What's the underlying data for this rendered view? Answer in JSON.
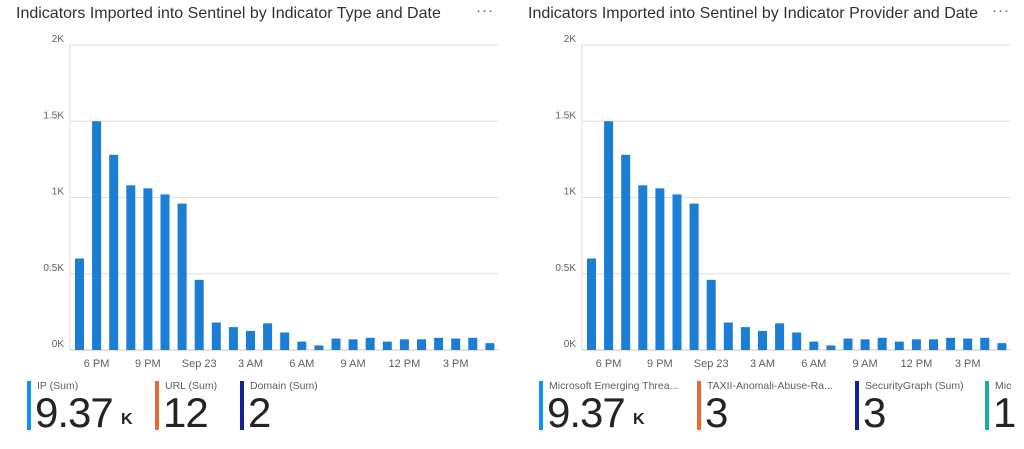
{
  "panels": [
    {
      "title": "Indicators Imported into Sentinel by Indicator Type and Date",
      "more_label": "···",
      "tiles": [
        {
          "label": "IP (Sum)",
          "value": "9.37",
          "unit": "K",
          "color": "#118dff"
        },
        {
          "label": "URL (Sum)",
          "value": "12",
          "unit": "",
          "color": "#e66c37"
        },
        {
          "label": "Domain (Sum)",
          "value": "2",
          "unit": "",
          "color": "#12239e"
        }
      ]
    },
    {
      "title": "Indicators Imported into Sentinel by Indicator Provider and Date",
      "more_label": "···",
      "tiles": [
        {
          "label": "Microsoft Emerging Threa...",
          "value": "9.37",
          "unit": "K",
          "color": "#118dff"
        },
        {
          "label": "TAXII-Anomali-Abuse-Ra...",
          "value": "3",
          "unit": "",
          "color": "#e66c37"
        },
        {
          "label": "SecurityGraph (Sum)",
          "value": "3",
          "unit": "",
          "color": "#12239e"
        },
        {
          "label": "Mic",
          "value": "1",
          "unit": "",
          "color": "#1aab9b"
        }
      ]
    }
  ],
  "chart_data": [
    {
      "type": "bar",
      "title": "Indicators Imported into Sentinel by Indicator Type and Date",
      "y_ticks": [
        "0K",
        "0.5K",
        "1K",
        "1.5K",
        "2K"
      ],
      "ylim": [
        0,
        2000
      ],
      "x_ticks": [
        {
          "label": "6 PM",
          "at": 1
        },
        {
          "label": "9 PM",
          "at": 4
        },
        {
          "label": "Sep 23",
          "at": 7
        },
        {
          "label": "3 AM",
          "at": 10
        },
        {
          "label": "6 AM",
          "at": 13
        },
        {
          "label": "9 AM",
          "at": 16
        },
        {
          "label": "12 PM",
          "at": 19
        },
        {
          "label": "3 PM",
          "at": 22
        }
      ],
      "bar_color": "#1a7fd4",
      "grid": true,
      "values": [
        600,
        1500,
        1280,
        1080,
        1060,
        1020,
        960,
        460,
        180,
        150,
        125,
        175,
        115,
        55,
        30,
        75,
        70,
        80,
        55,
        70,
        70,
        80,
        75,
        80,
        45
      ]
    },
    {
      "type": "bar",
      "title": "Indicators Imported into Sentinel by Indicator Provider and Date",
      "y_ticks": [
        "0K",
        "0.5K",
        "1K",
        "1.5K",
        "2K"
      ],
      "ylim": [
        0,
        2000
      ],
      "x_ticks": [
        {
          "label": "6 PM",
          "at": 1
        },
        {
          "label": "9 PM",
          "at": 4
        },
        {
          "label": "Sep 23",
          "at": 7
        },
        {
          "label": "3 AM",
          "at": 10
        },
        {
          "label": "6 AM",
          "at": 13
        },
        {
          "label": "9 AM",
          "at": 16
        },
        {
          "label": "12 PM",
          "at": 19
        },
        {
          "label": "3 PM",
          "at": 22
        }
      ],
      "bar_color": "#1a7fd4",
      "grid": true,
      "values": [
        600,
        1500,
        1280,
        1080,
        1060,
        1020,
        960,
        460,
        180,
        150,
        125,
        175,
        115,
        55,
        30,
        75,
        70,
        80,
        55,
        70,
        70,
        80,
        75,
        80,
        45
      ]
    }
  ]
}
